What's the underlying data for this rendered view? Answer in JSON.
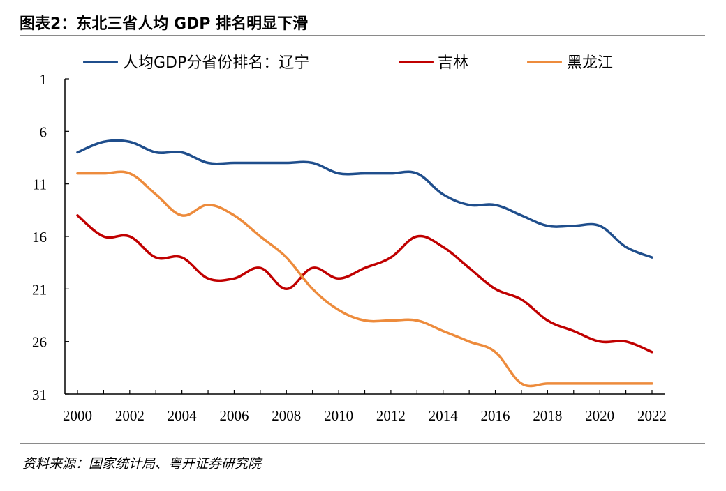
{
  "header": {
    "title": "图表2：东北三省人均 GDP 排名明显下滑"
  },
  "footer": {
    "source": "资料来源：国家统计局、粤开证券研究院"
  },
  "chart_data": {
    "type": "line",
    "title": "",
    "xlabel": "",
    "ylabel": "",
    "x": [
      2000,
      2001,
      2002,
      2003,
      2004,
      2005,
      2006,
      2007,
      2008,
      2009,
      2010,
      2011,
      2012,
      2013,
      2014,
      2015,
      2016,
      2017,
      2018,
      2019,
      2020,
      2021,
      2022
    ],
    "xlim": [
      2000,
      2022
    ],
    "ylim": [
      1,
      31
    ],
    "y_inverted": true,
    "xticks": [
      "2000",
      "2002",
      "2004",
      "2006",
      "2008",
      "2010",
      "2012",
      "2014",
      "2016",
      "2018",
      "2020",
      "2022"
    ],
    "yticks": [
      "1",
      "6",
      "11",
      "16",
      "21",
      "26",
      "31"
    ],
    "legend_position": "top",
    "grid": false,
    "series": [
      {
        "name": "人均GDP分省份排名：辽宁",
        "color": "#1f4e8c",
        "values": [
          8,
          7,
          7,
          8,
          8,
          9,
          9,
          9,
          9,
          9,
          10,
          10,
          10,
          10,
          12,
          13,
          13,
          14,
          15,
          15,
          15,
          17,
          18
        ]
      },
      {
        "name": "吉林",
        "color": "#c00000",
        "values": [
          14,
          16,
          16,
          18,
          18,
          20,
          20,
          19,
          21,
          19,
          20,
          19,
          18,
          16,
          17,
          19,
          21,
          22,
          24,
          25,
          26,
          26,
          27
        ]
      },
      {
        "name": "黑龙江",
        "color": "#ed8b3c",
        "values": [
          10,
          10,
          10,
          12,
          14,
          13,
          14,
          16,
          18,
          21,
          23,
          24,
          24,
          24,
          25,
          26,
          27,
          30,
          30,
          30,
          30,
          30,
          30
        ]
      }
    ]
  }
}
